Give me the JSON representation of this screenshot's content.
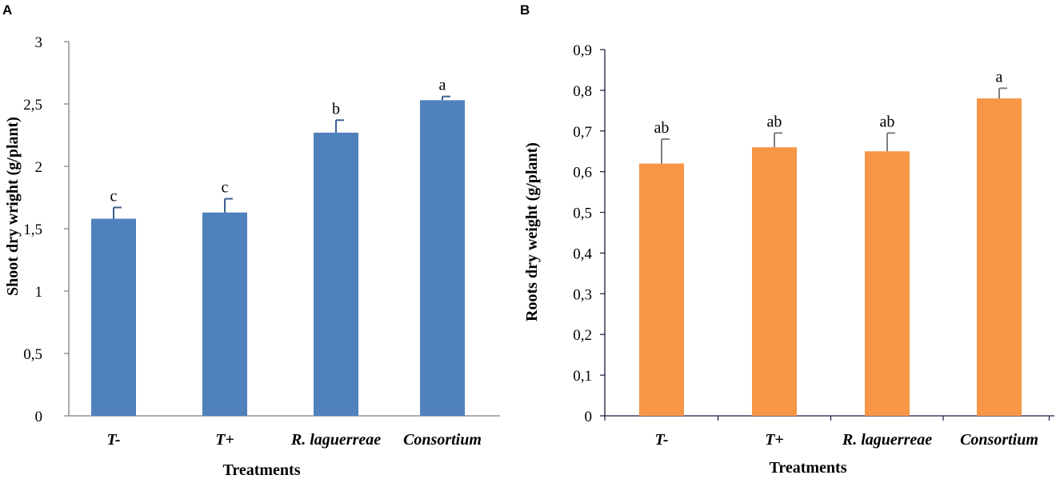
{
  "chart_data": [
    {
      "panel_label": "A",
      "type": "bar",
      "categories": [
        "T-",
        "T+",
        "R. laguerreae",
        "Consortium"
      ],
      "values": [
        1.58,
        1.63,
        2.27,
        2.53
      ],
      "errors": [
        0.09,
        0.11,
        0.1,
        0.03
      ],
      "significance": [
        "c",
        "c",
        "b",
        "a"
      ],
      "xlabel": "Treatments",
      "ylabel": "Shoot dry wright (g/plant)",
      "ylim": [
        0,
        3
      ],
      "y_ticks": [
        "0",
        "0,5",
        "1",
        "1,5",
        "2",
        "2,5",
        "3"
      ],
      "color": "#4f81bd",
      "error_color": "#3a5f8f",
      "legend": "none",
      "grid": false
    },
    {
      "panel_label": "B",
      "type": "bar",
      "categories": [
        "T-",
        "T+",
        "R. laguerreae",
        "Consortium"
      ],
      "values": [
        0.62,
        0.66,
        0.65,
        0.78
      ],
      "errors": [
        0.06,
        0.035,
        0.045,
        0.025
      ],
      "significance": [
        "ab",
        "ab",
        "ab",
        "a"
      ],
      "xlabel": "Treatments",
      "ylabel": "Roots dry  weight (g/plant)",
      "ylim": [
        0,
        0.9
      ],
      "y_ticks": [
        "0",
        "0,1",
        "0,2",
        "0,3",
        "0,4",
        "0,5",
        "0,6",
        "0,7",
        "0,8",
        "0,9"
      ],
      "color": "#f79646",
      "error_color": "#7f7f7f",
      "legend": "none",
      "grid": false
    }
  ]
}
